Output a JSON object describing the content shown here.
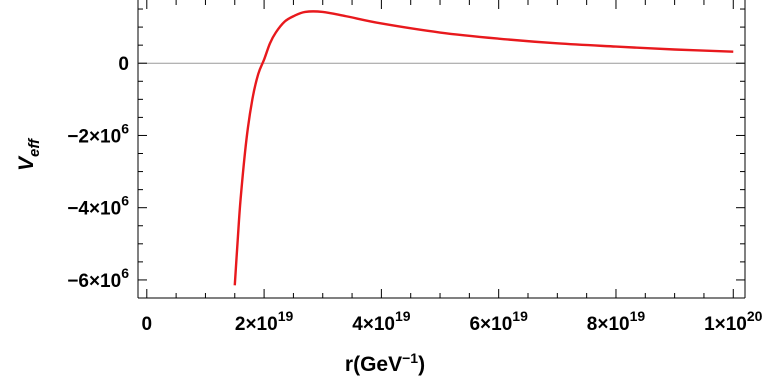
{
  "chart_data": {
    "type": "line",
    "title": "",
    "xlabel": "r(GeV",
    "xlabel_sup": "−1",
    "xlabel_close": ")",
    "ylabel": "V",
    "ylabel_sub": "eff",
    "xlim": [
      -1.5e+18,
      1.02e+20
    ],
    "ylim": [
      -6500000.0,
      1750000.0
    ],
    "x_ticks": [
      {
        "value": 0,
        "label": "0",
        "mant": "",
        "exp": ""
      },
      {
        "value": 2e+19,
        "label": "",
        "mant": "2×10",
        "exp": "19"
      },
      {
        "value": 4e+19,
        "label": "",
        "mant": "4×10",
        "exp": "19"
      },
      {
        "value": 6e+19,
        "label": "",
        "mant": "6×10",
        "exp": "19"
      },
      {
        "value": 8e+19,
        "label": "",
        "mant": "8×10",
        "exp": "19"
      },
      {
        "value": 1e+20,
        "label": "",
        "mant": "1×10",
        "exp": "20"
      }
    ],
    "y_ticks": [
      {
        "value": 0,
        "label": "0",
        "mant": "",
        "exp": ""
      },
      {
        "value": -2000000.0,
        "label": "",
        "mant": "−2×10",
        "exp": "6"
      },
      {
        "value": -4000000.0,
        "label": "",
        "mant": "−4×10",
        "exp": "6"
      },
      {
        "value": -6000000.0,
        "label": "",
        "mant": "−6×10",
        "exp": "6"
      }
    ],
    "grid": false,
    "series": [
      {
        "color": "#e8191d",
        "x": [
          1.5e+19,
          1.55e+19,
          1.6e+19,
          1.7e+19,
          1.8e+19,
          1.9e+19,
          2e+19,
          2.1e+19,
          2.2e+19,
          2.35e+19,
          2.5e+19,
          2.7e+19,
          3e+19,
          3.4e+19,
          4e+19,
          5e+19,
          6e+19,
          7e+19,
          8e+19,
          9e+19,
          1e+20
        ],
        "y": [
          -6150000.0,
          -4900000.0,
          -3750000.0,
          -2100000.0,
          -1000000.0,
          -300000.0,
          100000.0,
          550000.0,
          850000.0,
          1150000.0,
          1300000.0,
          1420000.0,
          1420000.0,
          1300000.0,
          1100000.0,
          850000.0,
          680000.0,
          550000.0,
          460000.0,
          380000.0,
          320000.0
        ]
      }
    ]
  }
}
